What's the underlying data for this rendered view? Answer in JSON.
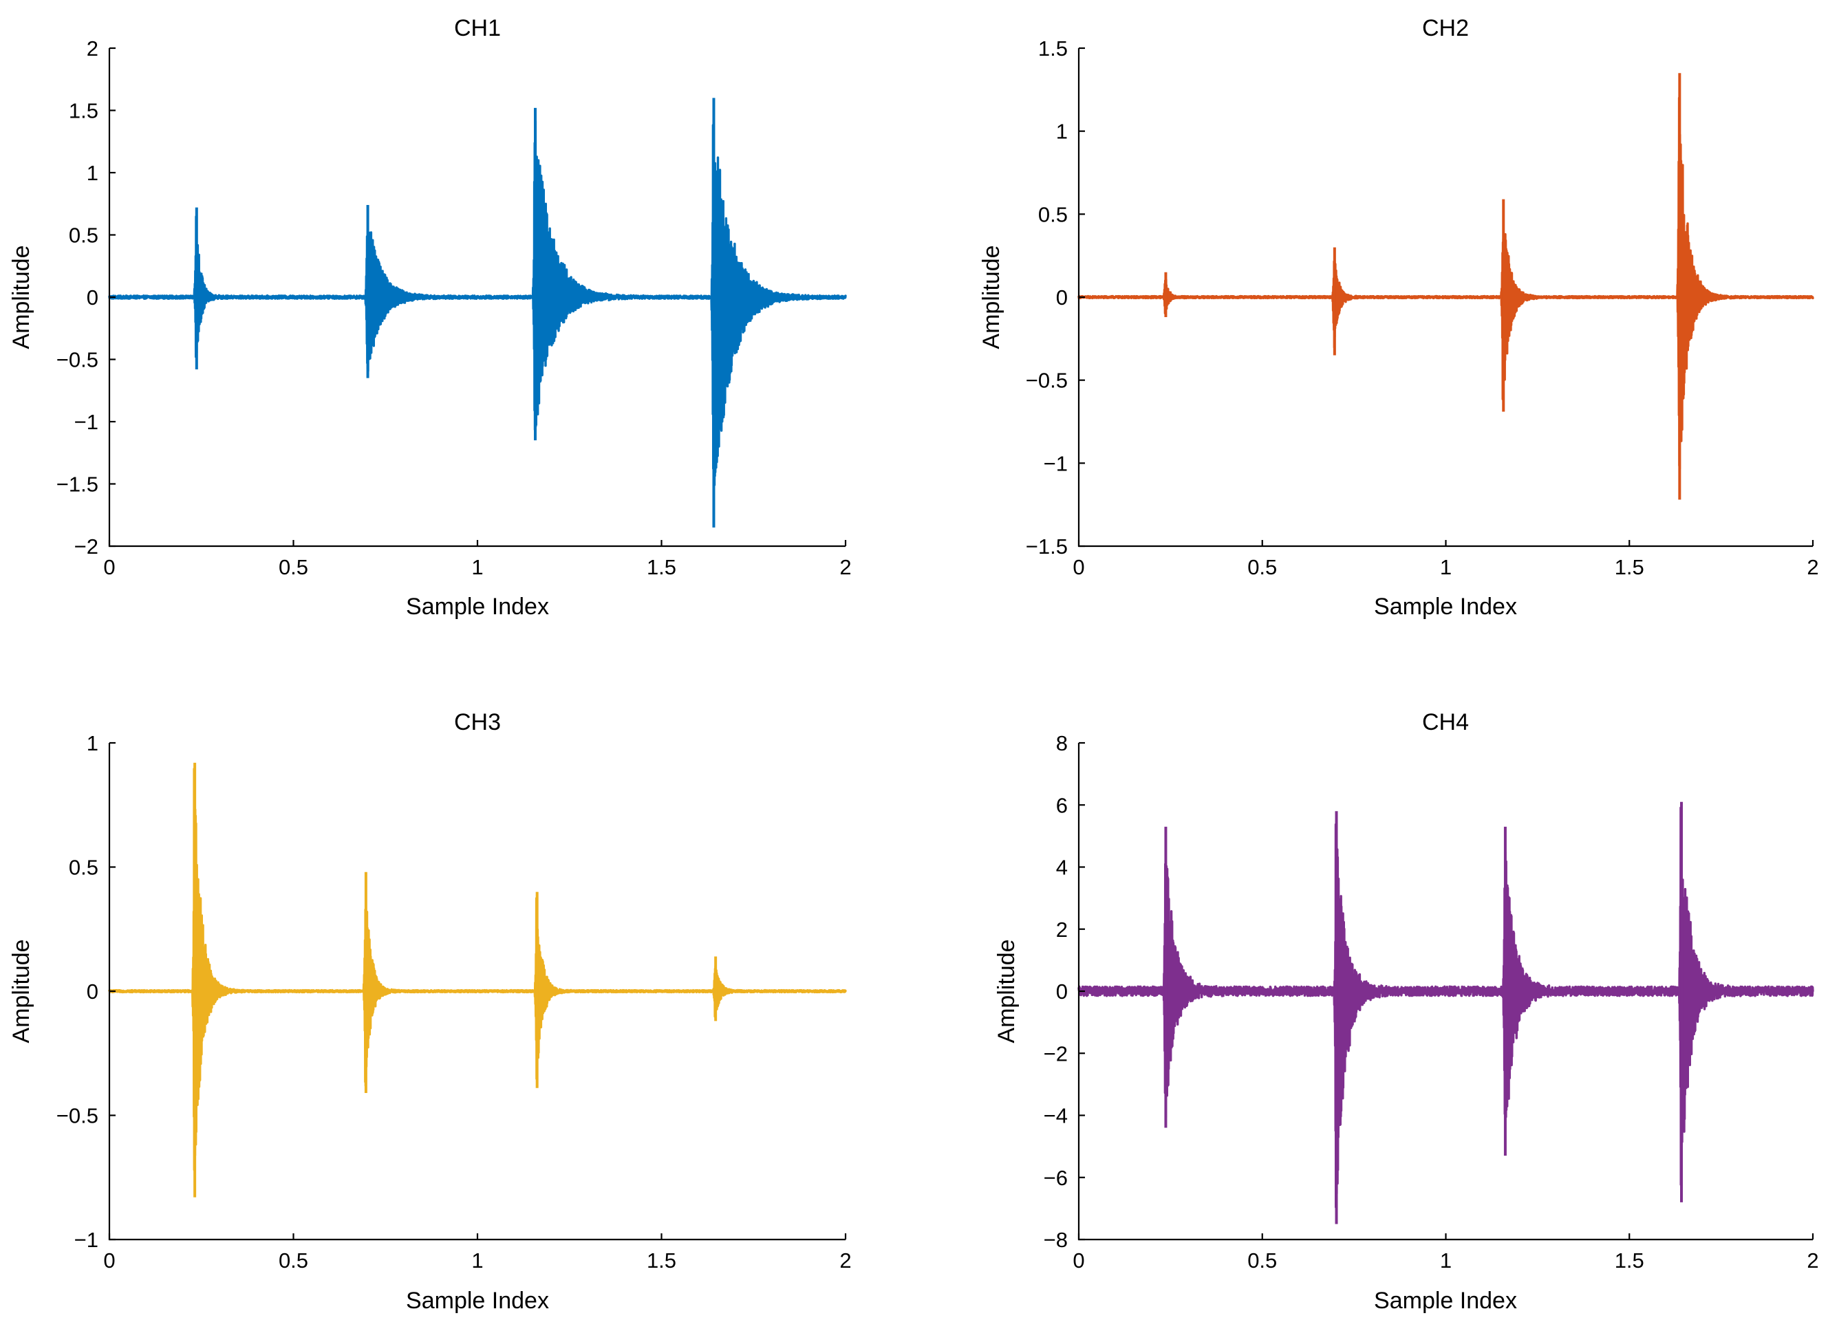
{
  "chart_data": [
    {
      "id": "ch1",
      "type": "line",
      "title": "CH1",
      "xlabel": "Sample Index",
      "ylabel": "Amplitude",
      "xlim": [
        0,
        2
      ],
      "ylim": [
        -2,
        2
      ],
      "xticks": [
        0,
        0.5,
        1,
        1.5,
        2
      ],
      "xtick_labels": [
        "0",
        "0.5",
        "1",
        "1.5",
        "2"
      ],
      "yticks": [
        -2,
        -1.5,
        -1,
        -0.5,
        0,
        0.5,
        1,
        1.5,
        2
      ],
      "ytick_labels": [
        "−2",
        "−1.5",
        "−1",
        "−0.5",
        "0",
        "0.5",
        "1",
        "1.5",
        "2"
      ],
      "color": "#0072BD",
      "baseline_noise": 0.012,
      "bursts": [
        {
          "x": 0.235,
          "peak_pos": 0.72,
          "peak_neg": -0.58,
          "decay": 0.012
        },
        {
          "x": 0.7,
          "peak_pos": 0.74,
          "peak_neg": -0.65,
          "decay": 0.035
        },
        {
          "x": 1.155,
          "peak_pos": 1.52,
          "peak_neg": -1.15,
          "decay": 0.045
        },
        {
          "x": 1.64,
          "peak_pos": 1.6,
          "peak_neg": -1.85,
          "decay": 0.045
        }
      ]
    },
    {
      "id": "ch2",
      "type": "line",
      "title": "CH2",
      "xlabel": "Sample Index",
      "ylabel": "Amplitude",
      "xlim": [
        0,
        2
      ],
      "ylim": [
        -1.5,
        1.5
      ],
      "xticks": [
        0,
        0.5,
        1,
        1.5,
        2
      ],
      "xtick_labels": [
        "0",
        "0.5",
        "1",
        "1.5",
        "2"
      ],
      "yticks": [
        -1.5,
        -1,
        -0.5,
        0,
        0.5,
        1,
        1.5
      ],
      "ytick_labels": [
        "−1.5",
        "−1",
        "−0.5",
        "0",
        "0.5",
        "1",
        "1.5"
      ],
      "color": "#D95319",
      "baseline_noise": 0.006,
      "bursts": [
        {
          "x": 0.235,
          "peak_pos": 0.15,
          "peak_neg": -0.12,
          "decay": 0.008
        },
        {
          "x": 0.695,
          "peak_pos": 0.3,
          "peak_neg": -0.35,
          "decay": 0.012
        },
        {
          "x": 1.155,
          "peak_pos": 0.59,
          "peak_neg": -0.69,
          "decay": 0.018
        },
        {
          "x": 1.635,
          "peak_pos": 1.35,
          "peak_neg": -1.22,
          "decay": 0.022
        }
      ]
    },
    {
      "id": "ch3",
      "type": "line",
      "title": "CH3",
      "xlabel": "Sample Index",
      "ylabel": "Amplitude",
      "xlim": [
        0,
        2
      ],
      "ylim": [
        -1,
        1
      ],
      "xticks": [
        0,
        0.5,
        1,
        1.5,
        2
      ],
      "xtick_labels": [
        "0",
        "0.5",
        "1",
        "1.5",
        "2"
      ],
      "yticks": [
        -1,
        -0.5,
        0,
        0.5,
        1
      ],
      "ytick_labels": [
        "−1",
        "−0.5",
        "0",
        "0.5",
        "1"
      ],
      "color": "#EDB120",
      "baseline_noise": 0.004,
      "bursts": [
        {
          "x": 0.23,
          "peak_pos": 0.92,
          "peak_neg": -0.83,
          "decay": 0.02
        },
        {
          "x": 0.695,
          "peak_pos": 0.48,
          "peak_neg": -0.41,
          "decay": 0.015
        },
        {
          "x": 1.16,
          "peak_pos": 0.4,
          "peak_neg": -0.39,
          "decay": 0.015
        },
        {
          "x": 1.645,
          "peak_pos": 0.14,
          "peak_neg": -0.12,
          "decay": 0.012
        }
      ]
    },
    {
      "id": "ch4",
      "type": "line",
      "title": "CH4",
      "xlabel": "Sample Index",
      "ylabel": "Amplitude",
      "xlim": [
        0,
        2
      ],
      "ylim": [
        -8,
        8
      ],
      "xticks": [
        0,
        0.5,
        1,
        1.5,
        2
      ],
      "xtick_labels": [
        "0",
        "0.5",
        "1",
        "1.5",
        "2"
      ],
      "yticks": [
        -8,
        -6,
        -4,
        -2,
        0,
        2,
        4,
        6,
        8
      ],
      "ytick_labels": [
        "−8",
        "−6",
        "−4",
        "−2",
        "0",
        "2",
        "4",
        "6",
        "8"
      ],
      "color": "#7E2F8E",
      "baseline_noise": 0.15,
      "bursts": [
        {
          "x": 0.235,
          "peak_pos": 5.3,
          "peak_neg": -4.4,
          "decay": 0.025
        },
        {
          "x": 0.7,
          "peak_pos": 5.8,
          "peak_neg": -7.5,
          "decay": 0.025
        },
        {
          "x": 1.16,
          "peak_pos": 5.3,
          "peak_neg": -5.3,
          "decay": 0.025
        },
        {
          "x": 1.64,
          "peak_pos": 6.1,
          "peak_neg": -6.8,
          "decay": 0.025
        }
      ]
    }
  ]
}
